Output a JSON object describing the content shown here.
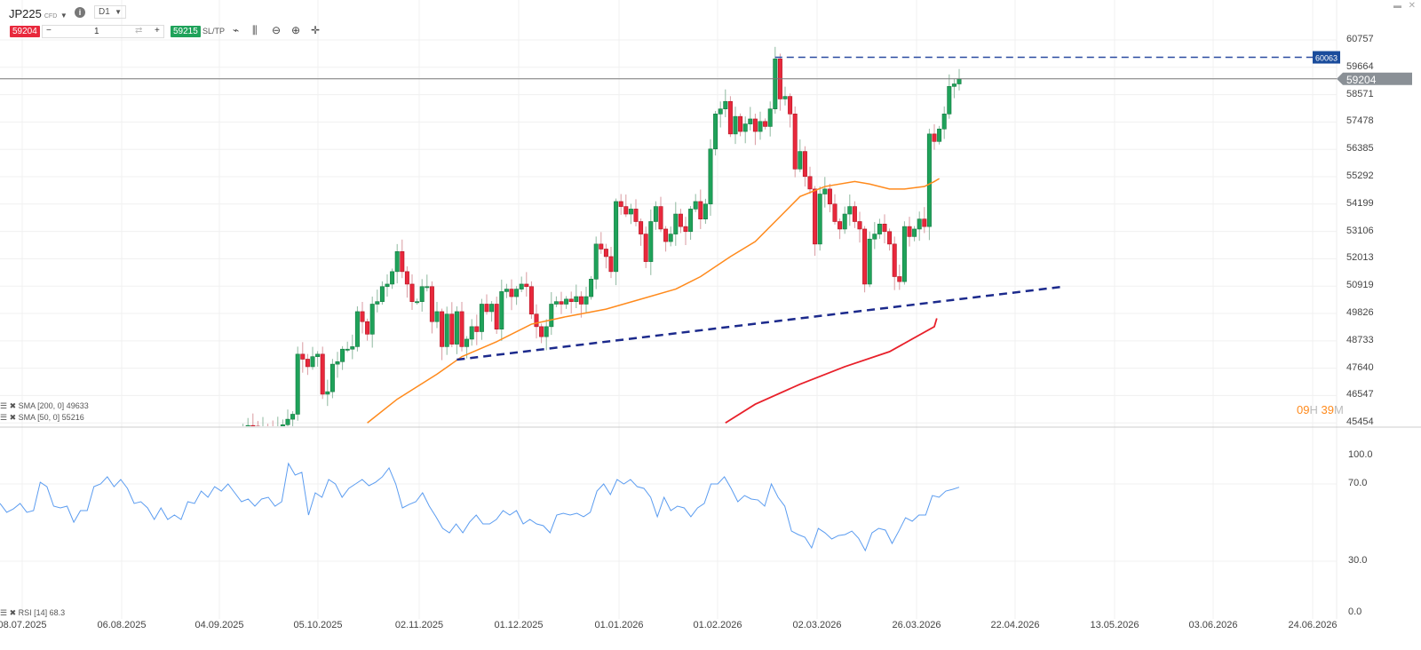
{
  "header": {
    "symbol": "JP225",
    "symbol_type": "CFD",
    "timeframe": "D1",
    "sell_price": "59204",
    "quantity": "1",
    "buy_price": "59215",
    "sltp_label": "SL/TP",
    "tools": [
      {
        "name": "line-chart-icon",
        "glyph": "⌁"
      },
      {
        "name": "candles-icon",
        "glyph": "⫼"
      },
      {
        "name": "zoom-out-icon",
        "glyph": "⊖"
      },
      {
        "name": "zoom-in-icon",
        "glyph": "⊕"
      },
      {
        "name": "crosshair-icon",
        "glyph": "✛"
      }
    ]
  },
  "window_controls": {
    "minimize": "▬",
    "close": "✕"
  },
  "colors": {
    "up": "#1fa25a",
    "down": "#e8283c",
    "sma50": "#ff8a1c",
    "sma200": "#e8202a",
    "trend": "#1c2a8c",
    "rsi": "#5b9cf0",
    "price_line": "#777"
  },
  "price_axis": [
    "60757",
    "59664",
    "58571",
    "57478",
    "56385",
    "55292",
    "54199",
    "53106",
    "52013",
    "50919",
    "49826",
    "48733",
    "47640",
    "46547",
    "45454"
  ],
  "current_price": "59204",
  "resistance_label": "60063",
  "countdown": {
    "hours": "09",
    "h": "H",
    "minutes": "39",
    "m": "M"
  },
  "legend": [
    {
      "label": "SMA [200, 0] 49633"
    },
    {
      "label": "SMA [50, 0] 55216"
    },
    {
      "label": "RSI [14] 68.3"
    }
  ],
  "rsi_axis": [
    "100.0",
    "70.0",
    "30.0",
    "0.0"
  ],
  "dates": [
    "08.07.2025",
    "06.08.2025",
    "04.09.2025",
    "05.10.2025",
    "02.11.2025",
    "01.12.2025",
    "01.01.2026",
    "01.02.2026",
    "02.03.2026",
    "26.03.2026",
    "22.04.2026",
    "13.05.2026",
    "03.06.2026",
    "24.06.2026"
  ],
  "chart_data": {
    "type": "candlestick",
    "closes": [
      45300,
      45350,
      45320,
      45280,
      45300,
      45250,
      45200,
      45220,
      45380,
      45600,
      45800,
      48200,
      48000,
      47700,
      48100,
      48200,
      46600,
      46700,
      47800,
      47900,
      48400,
      48400,
      48500,
      49900,
      49500,
      49000,
      50200,
      50300,
      50900,
      51000,
      51500,
      52300,
      51500,
      51000,
      50300,
      50300,
      50900,
      50900,
      49500,
      49900,
      48500,
      49800,
      48600,
      49900,
      48500,
      48800,
      49300,
      49100,
      50200,
      49900,
      50200,
      49200,
      50700,
      50800,
      50500,
      50800,
      51000,
      50900,
      49800,
      49300,
      48900,
      49300,
      50200,
      50300,
      50200,
      50400,
      50300,
      50500,
      50200,
      50500,
      51200,
      52600,
      52400,
      52100,
      51500,
      54300,
      54100,
      53800,
      54000,
      53500,
      53000,
      51900,
      53500,
      54100,
      53200,
      52700,
      53000,
      53800,
      53300,
      53100,
      54000,
      54300,
      53600,
      54200,
      56400,
      57800,
      58000,
      58300,
      57000,
      57700,
      57100,
      57400,
      57600,
      57100,
      57500,
      57300,
      58000,
      60000,
      58400,
      58500,
      57800,
      55600,
      56300,
      55300,
      54800,
      52600,
      54600,
      54800,
      54200,
      53500,
      53200,
      53800,
      54100,
      53500,
      53200,
      51000,
      52800,
      53000,
      53400,
      53100,
      52600,
      51300,
      51100,
      53300,
      52900,
      53200,
      53600,
      53300,
      57000,
      56700,
      57200,
      57800,
      58900,
      59000,
      59204
    ],
    "sma50": [
      [
        25,
        45454
      ],
      [
        31,
        46400
      ],
      [
        39,
        47400
      ],
      [
        44,
        48100
      ],
      [
        51,
        48700
      ],
      [
        58,
        49400
      ],
      [
        65,
        49700
      ],
      [
        73,
        50000
      ],
      [
        80,
        50400
      ],
      [
        87,
        50800
      ],
      [
        92,
        51300
      ],
      [
        98,
        52100
      ],
      [
        103,
        52700
      ],
      [
        108,
        53700
      ],
      [
        112,
        54500
      ],
      [
        117,
        54900
      ],
      [
        123,
        55100
      ],
      [
        126,
        55000
      ],
      [
        130,
        54800
      ],
      [
        133,
        54800
      ],
      [
        137,
        54900
      ],
      [
        139,
        55100
      ],
      [
        140,
        55216
      ]
    ],
    "sma200": [
      [
        97,
        45454
      ],
      [
        103,
        46200
      ],
      [
        112,
        47000
      ],
      [
        121,
        47700
      ],
      [
        130,
        48300
      ],
      [
        139,
        49300
      ],
      [
        139.5,
        49633
      ]
    ],
    "trendline": [
      [
        43,
        47980
      ],
      [
        165,
        50900
      ]
    ],
    "resistance": {
      "value": 60063,
      "from_index": 107
    },
    "rsi": [
      59.9,
      55.3,
      57.1,
      59.9,
      55.3,
      56.2,
      70.9,
      68.6,
      58.5,
      57.6,
      58.5,
      50.2,
      56.2,
      56.2,
      68.6,
      70,
      73.7,
      68.6,
      72.3,
      67.7,
      59.9,
      60.8,
      57.6,
      51.6,
      57.6,
      51.6,
      53.9,
      51.6,
      60.8,
      59.9,
      66.3,
      63.1,
      68.6,
      66.3,
      70,
      65.4,
      60.8,
      62.2,
      58.5,
      62.2,
      63.1,
      58.5,
      60.8,
      80.6,
      74.6,
      76,
      53.9,
      65.4,
      63.1,
      72.3,
      70,
      63.1,
      67.7,
      70,
      72.3,
      69.1,
      70.9,
      73.7,
      78.3,
      70,
      57.6,
      59.4,
      60.8,
      65.4,
      58.5,
      53,
      47,
      44.7,
      49.3,
      44.7,
      50.2,
      53.9,
      49.3,
      49.3,
      51.6,
      56.2,
      53.9,
      56.2,
      49.3,
      51.6,
      49.3,
      48.4,
      44.7,
      53.9,
      54.8,
      53.9,
      54.8,
      53,
      55.3,
      66.3,
      70,
      64.5,
      72.3,
      70,
      72.3,
      68.6,
      67.7,
      63.1,
      53,
      63.1,
      56.2,
      58.5,
      57.6,
      53,
      57.6,
      59.9,
      70,
      70,
      73.7,
      67.7,
      60.8,
      64,
      62.2,
      61.7,
      58.5,
      70,
      63.1,
      58.5,
      45.6,
      43.8,
      42.4,
      36.9,
      47,
      44.7,
      41.5,
      43.3,
      43.8,
      45.6,
      41.9,
      35.5,
      44.7,
      47,
      46.1,
      39.2,
      45.6,
      52.5,
      50.7,
      53.9,
      53.9,
      64,
      63.1,
      66.3,
      67.2,
      68.3
    ],
    "price_range": [
      45454,
      60757
    ],
    "rsi_range": [
      0,
      100
    ]
  }
}
